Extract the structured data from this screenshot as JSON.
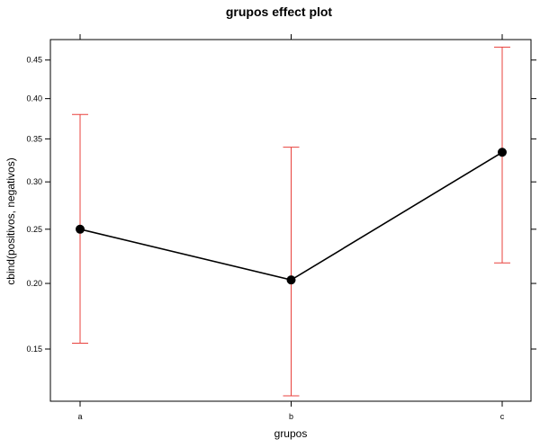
{
  "chart_data": {
    "type": "line",
    "title": "grupos effect plot",
    "xlabel": "grupos",
    "ylabel": "cbind(positivos, negativos)",
    "categories": [
      "a",
      "b",
      "c"
    ],
    "y_scale": "logit",
    "y_ticks": [
      "0.15",
      "0.20",
      "0.25",
      "0.30",
      "0.35",
      "0.40",
      "0.45"
    ],
    "ylim": [
      0.118,
      0.477
    ],
    "series": [
      {
        "values": [
          0.25,
          0.203,
          0.334
        ],
        "lower": [
          0.154,
          0.121,
          0.218
        ],
        "upper": [
          0.38,
          0.34,
          0.467
        ]
      }
    ],
    "colors": {
      "line": "#000000",
      "point": "#000000",
      "error_bar": "#e8413c",
      "frame": "#000000"
    },
    "grid": false
  }
}
